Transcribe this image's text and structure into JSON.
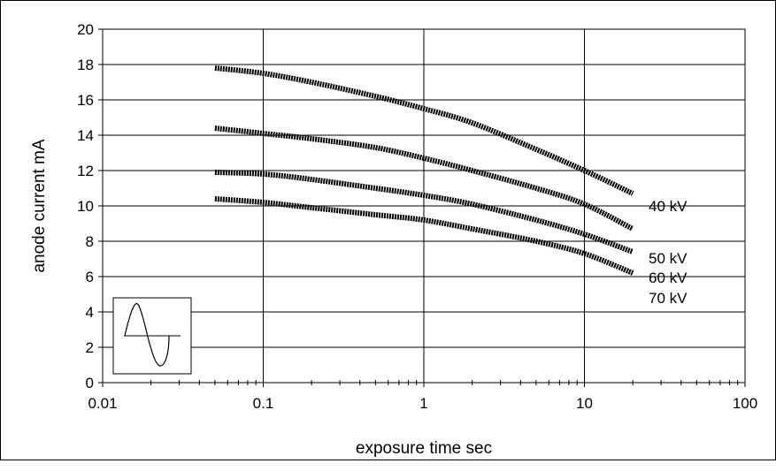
{
  "chart_data": {
    "type": "line",
    "title": "",
    "xlabel": "exposure time sec",
    "ylabel": "anode current mA",
    "xscale": "log",
    "xlim": [
      0.01,
      100
    ],
    "ylim": [
      0,
      20
    ],
    "x_ticks": [
      "0.01",
      "0.1",
      "1",
      "10",
      "100"
    ],
    "y_ticks": [
      "0",
      "2",
      "4",
      "6",
      "8",
      "10",
      "12",
      "14",
      "16",
      "18",
      "20"
    ],
    "grid": "major",
    "legend": "none",
    "inset_icon": "sine-wave-icon",
    "series_color": "#000000",
    "x": [
      0.05,
      0.1,
      0.2,
      0.5,
      1,
      2,
      5,
      10,
      20
    ],
    "series": [
      {
        "name": "40 kV",
        "values": [
          17.8,
          17.5,
          17.0,
          16.2,
          15.5,
          14.7,
          13.2,
          12.0,
          10.7
        ]
      },
      {
        "name": "50 kV",
        "values": [
          14.4,
          14.1,
          13.8,
          13.3,
          12.7,
          12.0,
          11.0,
          10.1,
          8.7
        ]
      },
      {
        "name": "60 kV",
        "values": [
          11.9,
          11.8,
          11.5,
          11.0,
          10.6,
          10.1,
          9.2,
          8.4,
          7.4
        ]
      },
      {
        "name": "70 kV",
        "values": [
          10.4,
          10.2,
          9.9,
          9.5,
          9.2,
          8.7,
          8.0,
          7.3,
          6.2
        ]
      }
    ]
  }
}
